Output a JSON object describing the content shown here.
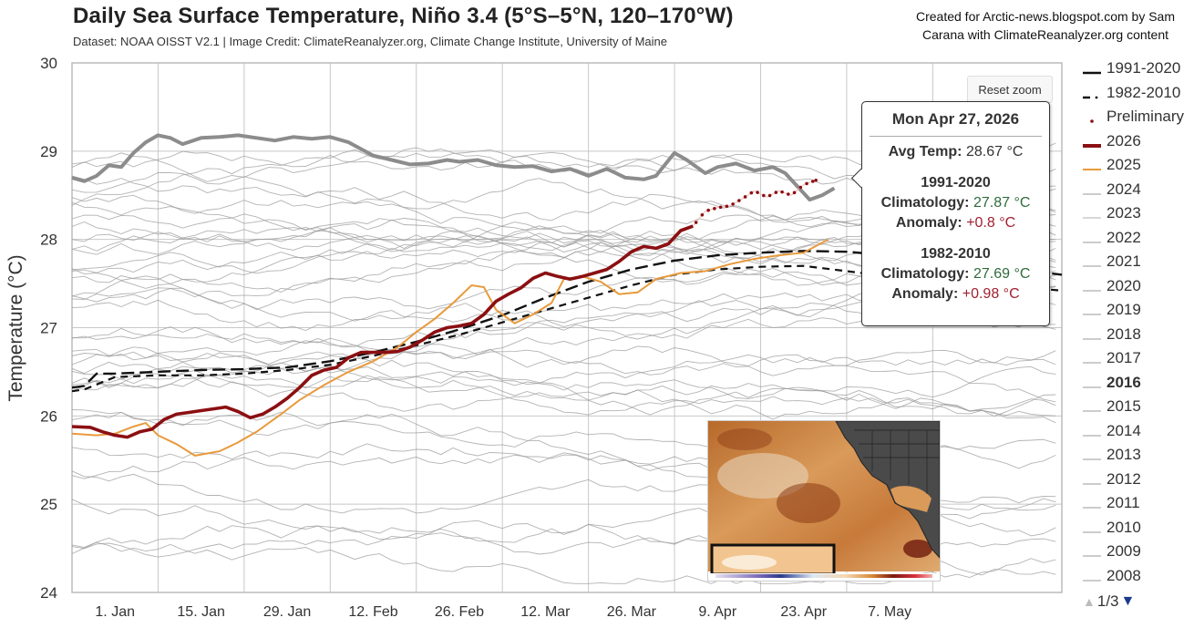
{
  "header": {
    "title": "Daily Sea Surface Temperature, Niño 3.4 (5°S–5°N, 120–170°W)",
    "subtitle": "Dataset: NOAA OISST V2.1 | Image Credit: ClimateReanalyzer.org, Climate Change Institute, University of Maine",
    "credit_line1": "Created for Arctic-news.blogspot.com by Sam",
    "credit_line2": "Carana with ClimateReanalyzer.org content"
  },
  "toolbar": {
    "reset_zoom_label": "Reset zoom"
  },
  "tooltip": {
    "date": "Mon Apr 27, 2026",
    "avg_label": "Avg Temp:",
    "avg_value": "28.67 °C",
    "clim1_period": "1991-2020",
    "clim1_label": "Climatology:",
    "clim1_value": "27.87 °C",
    "anom1_label": "Anomaly:",
    "anom1_value": "+0.8 °C",
    "clim2_period": "1982-2010",
    "clim2_label": "Climatology:",
    "clim2_value": "27.69 °C",
    "anom2_label": "Anomaly:",
    "anom2_value": "+0.98 °C"
  },
  "legend": {
    "items": [
      {
        "label": "1991-2020",
        "style": "solid-black"
      },
      {
        "label": "1982-2010",
        "style": "dash-black"
      },
      {
        "label": "Preliminary",
        "style": "dot-red"
      },
      {
        "label": "2026",
        "style": "thick-red"
      },
      {
        "label": "2025",
        "style": "orange"
      },
      {
        "label": "2024",
        "style": "gray"
      },
      {
        "label": "2023",
        "style": "lightgray"
      },
      {
        "label": "2022",
        "style": "gray"
      },
      {
        "label": "2021",
        "style": "gray"
      },
      {
        "label": "2020",
        "style": "gray"
      },
      {
        "label": "2019",
        "style": "gray"
      },
      {
        "label": "2018",
        "style": "gray"
      },
      {
        "label": "2017",
        "style": "gray"
      },
      {
        "label": "2016",
        "style": "gray",
        "bold": true
      },
      {
        "label": "2015",
        "style": "gray"
      },
      {
        "label": "2014",
        "style": "gray"
      },
      {
        "label": "2013",
        "style": "gray"
      },
      {
        "label": "2012",
        "style": "gray"
      },
      {
        "label": "2011",
        "style": "gray"
      },
      {
        "label": "2010",
        "style": "gray"
      },
      {
        "label": "2009",
        "style": "gray"
      },
      {
        "label": "2008",
        "style": "gray"
      }
    ],
    "page": "1/3"
  },
  "colors": {
    "y2026": "#8b0f12",
    "y2025": "#e89a3c",
    "preliminary": "#8b0f12",
    "clim": "#111111",
    "highlight_gray": "#8c8c8c",
    "other_years": "#9a9a9a",
    "grid": "#c8c8c8",
    "nav_down": "#1a3a8c"
  },
  "chart_data": {
    "type": "line",
    "title": "Daily Sea Surface Temperature, Niño 3.4 (5°S–5°N, 120–170°W)",
    "xlabel": "",
    "ylabel": "Temperature (°C)",
    "ylim": [
      24,
      30
    ],
    "yticks": [
      "24",
      "25",
      "26",
      "27",
      "28",
      "29",
      "30"
    ],
    "x_unit": "day-of-year",
    "xlim": [
      -7,
      154
    ],
    "xticks": [
      {
        "label": "1. Jan",
        "day": 0
      },
      {
        "label": "15. Jan",
        "day": 14
      },
      {
        "label": "29. Jan",
        "day": 28
      },
      {
        "label": "12. Feb",
        "day": 42
      },
      {
        "label": "26. Feb",
        "day": 56
      },
      {
        "label": "12. Mar",
        "day": 70
      },
      {
        "label": "26. Mar",
        "day": 84
      },
      {
        "label": "9. Apr",
        "day": 98
      },
      {
        "label": "23. Apr",
        "day": 112
      },
      {
        "label": "7. May",
        "day": 126
      }
    ],
    "grid": true,
    "legend_position": "right",
    "series": [
      {
        "name": "highlighted-year (thick gray)",
        "key": "gray_thick",
        "x": [
          -7,
          -5,
          -3,
          -1,
          1,
          3,
          5,
          7,
          9,
          11,
          14,
          17,
          20,
          23,
          26,
          29,
          32,
          35,
          38,
          42,
          45,
          48,
          51,
          54,
          56,
          59,
          62,
          65,
          68,
          71,
          74,
          77,
          80,
          83,
          86,
          88,
          91,
          93,
          96,
          98,
          101,
          104,
          107,
          109,
          111,
          113,
          115,
          117
        ],
        "y": [
          28.7,
          28.66,
          28.72,
          28.84,
          28.82,
          28.98,
          29.1,
          29.18,
          29.15,
          29.08,
          29.15,
          29.16,
          29.18,
          29.15,
          29.12,
          29.16,
          29.14,
          29.16,
          29.1,
          28.95,
          28.9,
          28.85,
          28.86,
          28.9,
          28.88,
          28.9,
          28.84,
          28.82,
          28.83,
          28.77,
          28.8,
          28.72,
          28.8,
          28.7,
          28.68,
          28.72,
          28.98,
          28.9,
          28.75,
          28.82,
          28.86,
          28.78,
          28.82,
          28.75,
          28.6,
          28.45,
          28.5,
          28.58
        ]
      },
      {
        "name": "1991-2020",
        "key": "clim9120",
        "x": [
          -7,
          -5,
          -3,
          0,
          7,
          14,
          21,
          28,
          35,
          42,
          49,
          56,
          63,
          70,
          77,
          84,
          91,
          98,
          105,
          112,
          119,
          126,
          133,
          140,
          147,
          154
        ],
        "y": [
          26.32,
          26.34,
          26.48,
          26.48,
          26.5,
          26.52,
          26.53,
          26.55,
          26.62,
          26.72,
          26.84,
          26.98,
          27.14,
          27.34,
          27.52,
          27.66,
          27.76,
          27.82,
          27.85,
          27.87,
          27.86,
          27.82,
          27.78,
          27.72,
          27.66,
          27.6
        ]
      },
      {
        "name": "1982-2010",
        "key": "clim8210",
        "x": [
          -7,
          -5,
          0,
          7,
          14,
          21,
          28,
          35,
          42,
          49,
          56,
          63,
          70,
          77,
          84,
          91,
          98,
          105,
          112,
          119,
          126,
          133,
          140,
          147,
          154
        ],
        "y": [
          26.28,
          26.3,
          26.44,
          26.46,
          26.46,
          26.48,
          26.52,
          26.58,
          26.68,
          26.8,
          26.92,
          27.06,
          27.2,
          27.34,
          27.48,
          27.6,
          27.66,
          27.69,
          27.7,
          27.64,
          27.58,
          27.54,
          27.5,
          27.46,
          27.42
        ]
      },
      {
        "name": "2025",
        "key": "y2025",
        "x": [
          -7,
          -3,
          0,
          3,
          5,
          7,
          10,
          13,
          17,
          20,
          23,
          27,
          30,
          34,
          38,
          42,
          46,
          49,
          52,
          55,
          58,
          60,
          62,
          65,
          68,
          71,
          73,
          76,
          79,
          82,
          85,
          88,
          92,
          96,
          100,
          104,
          108,
          112,
          116
        ],
        "y": [
          25.8,
          25.78,
          25.8,
          25.88,
          25.92,
          25.78,
          25.68,
          25.55,
          25.6,
          25.7,
          25.82,
          26.02,
          26.18,
          26.35,
          26.5,
          26.62,
          26.78,
          26.95,
          27.1,
          27.28,
          27.48,
          27.46,
          27.2,
          27.05,
          27.15,
          27.28,
          27.55,
          27.58,
          27.52,
          27.38,
          27.4,
          27.55,
          27.62,
          27.64,
          27.72,
          27.78,
          27.82,
          27.85,
          28.0
        ]
      },
      {
        "name": "2026",
        "key": "y2026",
        "x": [
          -7,
          -4,
          -2,
          0,
          2,
          4,
          6,
          8,
          10,
          12,
          14,
          16,
          18,
          20,
          22,
          24,
          26,
          28,
          30,
          32,
          34,
          36,
          38,
          40,
          42,
          44,
          46,
          48,
          50,
          52,
          54,
          56,
          58,
          60,
          62,
          64,
          66,
          68,
          70,
          72,
          74,
          76,
          78,
          80,
          82,
          84,
          86,
          88,
          90,
          92,
          94
        ],
        "y": [
          25.88,
          25.87,
          25.82,
          25.78,
          25.76,
          25.82,
          25.85,
          25.96,
          26.02,
          26.04,
          26.06,
          26.08,
          26.1,
          26.05,
          25.98,
          26.02,
          26.1,
          26.2,
          26.32,
          26.46,
          26.52,
          26.55,
          26.66,
          26.72,
          26.72,
          26.72,
          26.73,
          26.78,
          26.86,
          26.95,
          27.0,
          27.02,
          27.05,
          27.15,
          27.3,
          27.38,
          27.45,
          27.56,
          27.62,
          27.58,
          27.55,
          27.58,
          27.62,
          27.66,
          27.75,
          27.86,
          27.92,
          27.9,
          27.95,
          28.1,
          28.15
        ]
      },
      {
        "name": "Preliminary",
        "key": "prelim",
        "x": [
          94,
          96,
          98,
          100,
          102,
          104,
          106,
          108,
          110,
          112,
          114
        ],
        "y": [
          28.15,
          28.32,
          28.36,
          28.38,
          28.46,
          28.55,
          28.48,
          28.55,
          28.5,
          28.62,
          28.67
        ]
      }
    ]
  }
}
